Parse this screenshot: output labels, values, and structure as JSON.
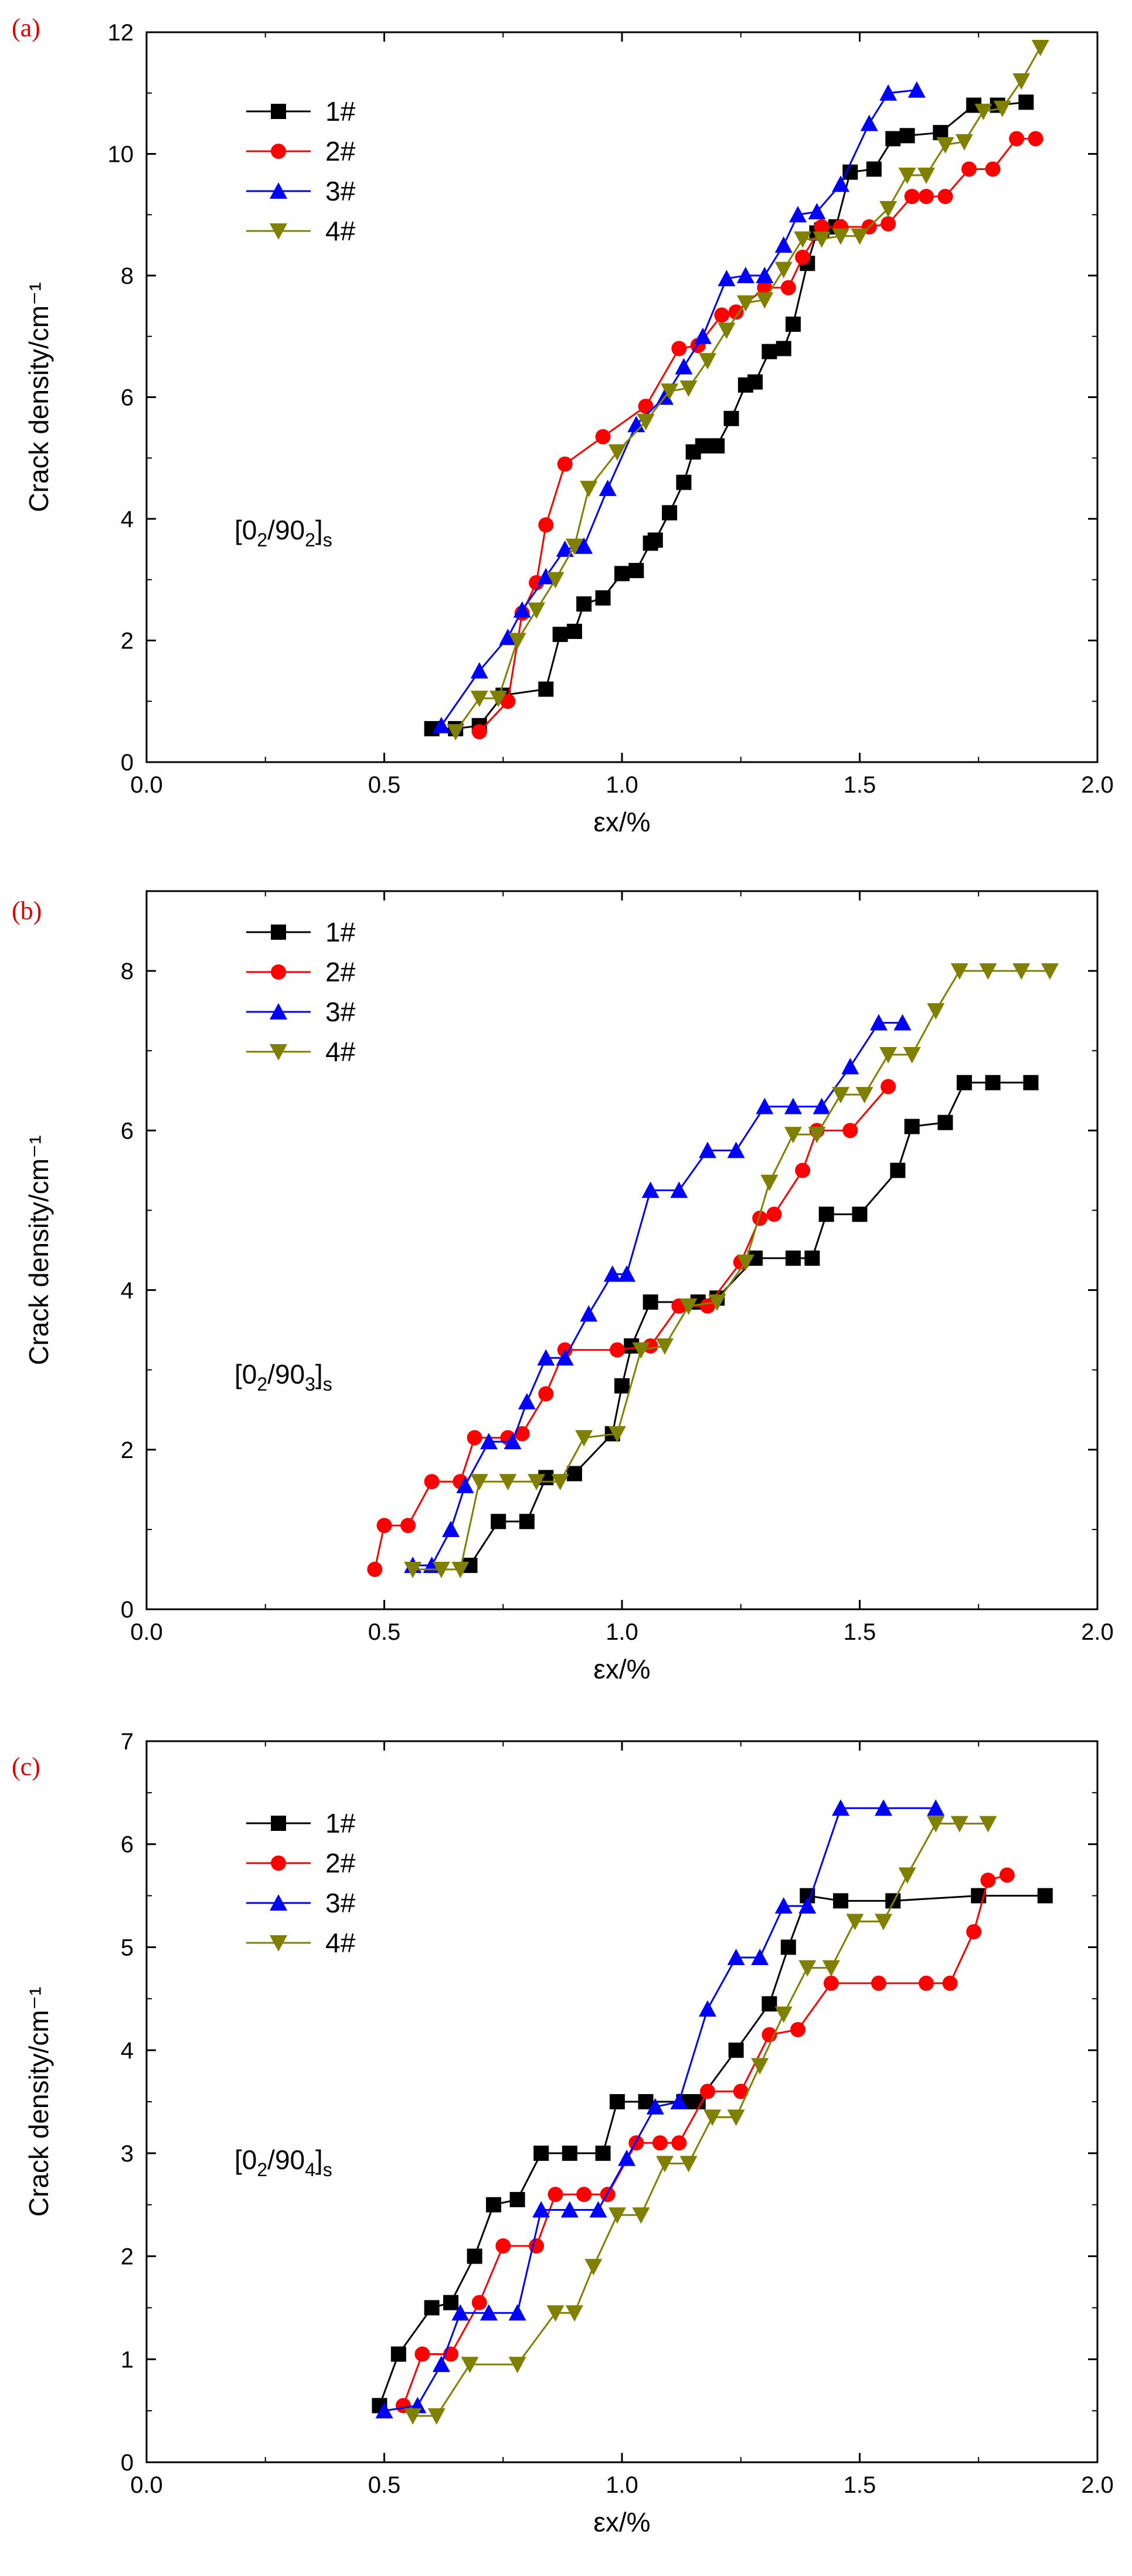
{
  "chart_data": [
    {
      "panel": "(a)",
      "type": "line",
      "xlabel": "εx/%",
      "ylabel": "Crack density/cm⁻¹",
      "xlim": [
        0,
        2
      ],
      "ylim": [
        0,
        12
      ],
      "xticks": [
        0.0,
        0.5,
        1.0,
        1.5,
        2.0
      ],
      "yticks": [
        0,
        2,
        4,
        6,
        8,
        10,
        12
      ],
      "annotation": {
        "text": "[0/90]",
        "sub1": "2",
        "sub2": "2",
        "sub3": "s"
      },
      "legend": "top-left",
      "series": [
        {
          "name": "1#",
          "color": "#000000",
          "marker": "square",
          "x": [
            0.6,
            0.65,
            0.7,
            0.75,
            0.84,
            0.87,
            0.9,
            0.92,
            0.96,
            1.0,
            1.03,
            1.06,
            1.07,
            1.1,
            1.13,
            1.15,
            1.17,
            1.2,
            1.23,
            1.26,
            1.28,
            1.31,
            1.34,
            1.36,
            1.39,
            1.41,
            1.42,
            1.45,
            1.48,
            1.53,
            1.57,
            1.6,
            1.67,
            1.74,
            1.79,
            1.85
          ],
          "y": [
            0.55,
            0.55,
            0.6,
            1.1,
            1.2,
            2.1,
            2.15,
            2.6,
            2.7,
            3.1,
            3.15,
            3.6,
            3.65,
            4.1,
            4.6,
            5.1,
            5.2,
            5.2,
            5.65,
            6.2,
            6.25,
            6.75,
            6.8,
            7.2,
            8.2,
            8.7,
            8.75,
            8.8,
            9.7,
            9.75,
            10.25,
            10.3,
            10.35,
            10.8,
            10.8,
            10.85
          ]
        },
        {
          "name": "2#",
          "color": "#ff0000",
          "marker": "circle",
          "x": [
            0.7,
            0.76,
            0.79,
            0.82,
            0.84,
            0.88,
            0.96,
            1.05,
            1.12,
            1.16,
            1.21,
            1.24,
            1.3,
            1.35,
            1.38,
            1.42,
            1.46,
            1.52,
            1.56,
            1.61,
            1.64,
            1.68,
            1.73,
            1.78,
            1.83,
            1.87
          ],
          "y": [
            0.5,
            1.0,
            2.45,
            2.95,
            3.9,
            4.9,
            5.35,
            5.85,
            6.8,
            6.85,
            7.35,
            7.4,
            7.8,
            7.8,
            8.3,
            8.8,
            8.8,
            8.8,
            8.85,
            9.3,
            9.3,
            9.3,
            9.75,
            9.75,
            10.25,
            10.25
          ]
        },
        {
          "name": "3#",
          "color": "#0000ff",
          "marker": "triangle-up",
          "x": [
            0.62,
            0.7,
            0.76,
            0.79,
            0.84,
            0.88,
            0.92,
            0.97,
            1.03,
            1.09,
            1.13,
            1.17,
            1.22,
            1.26,
            1.3,
            1.34,
            1.37,
            1.41,
            1.46,
            1.52,
            1.56,
            1.62
          ],
          "y": [
            0.6,
            1.5,
            2.05,
            2.5,
            3.05,
            3.5,
            3.55,
            4.5,
            5.55,
            6.0,
            6.5,
            7.0,
            7.95,
            8.0,
            8.0,
            8.5,
            9.0,
            9.05,
            9.5,
            10.5,
            11.0,
            11.05
          ]
        },
        {
          "name": "4#",
          "color": "#808000",
          "marker": "triangle-down",
          "x": [
            0.65,
            0.7,
            0.74,
            0.78,
            0.82,
            0.86,
            0.9,
            0.93,
            0.99,
            1.05,
            1.1,
            1.14,
            1.18,
            1.22,
            1.26,
            1.3,
            1.34,
            1.38,
            1.42,
            1.46,
            1.5,
            1.56,
            1.6,
            1.64,
            1.68,
            1.72,
            1.76,
            1.8,
            1.84,
            1.88
          ],
          "y": [
            0.5,
            1.05,
            1.05,
            2.0,
            2.5,
            3.0,
            3.55,
            4.5,
            5.1,
            5.6,
            6.1,
            6.15,
            6.6,
            7.1,
            7.55,
            7.6,
            8.1,
            8.6,
            8.6,
            8.65,
            8.65,
            9.1,
            9.65,
            9.65,
            10.15,
            10.2,
            10.7,
            10.75,
            11.2,
            11.75
          ]
        }
      ]
    },
    {
      "panel": "(b)",
      "type": "line",
      "xlabel": "εx/%",
      "ylabel": "Crack density/cm⁻¹",
      "xlim": [
        0,
        2
      ],
      "ylim": [
        0,
        9
      ],
      "xticks": [
        0.0,
        0.5,
        1.0,
        1.5,
        2.0
      ],
      "yticks": [
        0,
        2,
        4,
        6,
        8
      ],
      "annotation": {
        "text": "[0/90]",
        "sub1": "2",
        "sub2": "3",
        "sub3": "s"
      },
      "legend": "top-left",
      "series": [
        {
          "name": "1#",
          "color": "#000000",
          "marker": "square",
          "x": [
            0.68,
            0.74,
            0.8,
            0.84,
            0.9,
            0.98,
            1.0,
            1.02,
            1.06,
            1.16,
            1.2,
            1.28,
            1.36,
            1.4,
            1.43,
            1.5,
            1.58,
            1.61,
            1.68,
            1.72,
            1.78,
            1.86
          ],
          "y": [
            0.55,
            1.1,
            1.1,
            1.65,
            1.7,
            2.2,
            2.8,
            3.3,
            3.85,
            3.85,
            3.9,
            4.4,
            4.4,
            4.4,
            4.95,
            4.95,
            5.5,
            6.05,
            6.1,
            6.6,
            6.6,
            6.6
          ]
        },
        {
          "name": "2#",
          "color": "#ff0000",
          "marker": "circle",
          "x": [
            0.48,
            0.5,
            0.55,
            0.6,
            0.66,
            0.69,
            0.76,
            0.79,
            0.84,
            0.88,
            0.99,
            1.06,
            1.12,
            1.18,
            1.25,
            1.29,
            1.32,
            1.38,
            1.41,
            1.48,
            1.56
          ],
          "y": [
            0.5,
            1.05,
            1.05,
            1.6,
            1.6,
            2.15,
            2.15,
            2.2,
            2.7,
            3.25,
            3.25,
            3.3,
            3.8,
            3.8,
            4.35,
            4.9,
            4.95,
            5.5,
            6.0,
            6.0,
            6.55
          ]
        },
        {
          "name": "3#",
          "color": "#0000ff",
          "marker": "triangle-up",
          "x": [
            0.56,
            0.6,
            0.64,
            0.67,
            0.72,
            0.77,
            0.8,
            0.84,
            0.88,
            0.93,
            0.98,
            1.01,
            1.06,
            1.12,
            1.18,
            1.24,
            1.3,
            1.36,
            1.42,
            1.48,
            1.54,
            1.59
          ],
          "y": [
            0.55,
            0.55,
            1.0,
            1.55,
            2.1,
            2.1,
            2.6,
            3.15,
            3.15,
            3.7,
            4.2,
            4.2,
            5.25,
            5.25,
            5.75,
            5.75,
            6.3,
            6.3,
            6.3,
            6.8,
            7.35,
            7.35
          ]
        },
        {
          "name": "4#",
          "color": "#808000",
          "marker": "triangle-down",
          "x": [
            0.56,
            0.62,
            0.66,
            0.7,
            0.76,
            0.82,
            0.87,
            0.92,
            0.99,
            1.04,
            1.09,
            1.14,
            1.2,
            1.26,
            1.31,
            1.36,
            1.41,
            1.46,
            1.51,
            1.56,
            1.61,
            1.66,
            1.71,
            1.77,
            1.84,
            1.9
          ],
          "y": [
            0.5,
            0.5,
            0.5,
            1.6,
            1.6,
            1.6,
            1.6,
            2.15,
            2.2,
            3.25,
            3.3,
            3.8,
            3.85,
            4.35,
            5.35,
            5.95,
            5.95,
            6.45,
            6.45,
            6.95,
            6.95,
            7.5,
            8.0,
            8.0,
            8.0,
            8.0
          ]
        }
      ]
    },
    {
      "panel": "(c)",
      "type": "line",
      "xlabel": "εx/%",
      "ylabel": "Crack density/cm⁻¹",
      "xlim": [
        0,
        2
      ],
      "ylim": [
        0,
        7
      ],
      "xticks": [
        0.0,
        0.5,
        1.0,
        1.5,
        2.0
      ],
      "yticks": [
        0,
        1,
        2,
        3,
        4,
        5,
        6,
        7
      ],
      "annotation": {
        "text": "[0/90]",
        "sub1": "2",
        "sub2": "4",
        "sub3": "s"
      },
      "legend": "top-left",
      "series": [
        {
          "name": "1#",
          "color": "#000000",
          "marker": "square",
          "x": [
            0.49,
            0.53,
            0.6,
            0.64,
            0.69,
            0.73,
            0.78,
            0.83,
            0.89,
            0.96,
            0.99,
            1.05,
            1.13,
            1.16,
            1.24,
            1.31,
            1.35,
            1.39,
            1.46,
            1.57,
            1.75,
            1.89
          ],
          "y": [
            0.55,
            1.05,
            1.5,
            1.55,
            2.0,
            2.5,
            2.55,
            3.0,
            3.0,
            3.0,
            3.5,
            3.5,
            3.5,
            3.5,
            4.0,
            4.45,
            5.0,
            5.5,
            5.45,
            5.45,
            5.5,
            5.5
          ]
        },
        {
          "name": "2#",
          "color": "#ff0000",
          "marker": "circle",
          "x": [
            0.54,
            0.58,
            0.64,
            0.7,
            0.75,
            0.82,
            0.86,
            0.92,
            0.97,
            1.03,
            1.08,
            1.12,
            1.18,
            1.25,
            1.31,
            1.37,
            1.44,
            1.54,
            1.64,
            1.69,
            1.74,
            1.77,
            1.81
          ],
          "y": [
            0.55,
            1.05,
            1.05,
            1.55,
            2.1,
            2.1,
            2.6,
            2.6,
            2.6,
            3.1,
            3.1,
            3.1,
            3.6,
            3.6,
            4.15,
            4.2,
            4.65,
            4.65,
            4.65,
            4.65,
            5.15,
            5.65,
            5.7
          ]
        },
        {
          "name": "3#",
          "color": "#0000ff",
          "marker": "triangle-up",
          "x": [
            0.5,
            0.57,
            0.62,
            0.66,
            0.72,
            0.78,
            0.83,
            0.89,
            0.95,
            1.01,
            1.07,
            1.12,
            1.18,
            1.24,
            1.29,
            1.34,
            1.39,
            1.46,
            1.55,
            1.66
          ],
          "y": [
            0.5,
            0.55,
            0.95,
            1.45,
            1.45,
            1.45,
            2.45,
            2.45,
            2.45,
            2.95,
            3.45,
            3.5,
            4.4,
            4.9,
            4.9,
            5.4,
            5.4,
            6.35,
            6.35,
            6.35
          ]
        },
        {
          "name": "4#",
          "color": "#808000",
          "marker": "triangle-down",
          "x": [
            0.56,
            0.61,
            0.68,
            0.78,
            0.86,
            0.9,
            0.94,
            0.99,
            1.04,
            1.09,
            1.14,
            1.19,
            1.24,
            1.29,
            1.34,
            1.39,
            1.44,
            1.49,
            1.55,
            1.6,
            1.66,
            1.71,
            1.77
          ],
          "y": [
            0.45,
            0.45,
            0.95,
            0.95,
            1.45,
            1.45,
            1.9,
            2.4,
            2.4,
            2.9,
            2.9,
            3.35,
            3.35,
            3.85,
            4.35,
            4.8,
            4.8,
            5.25,
            5.25,
            5.7,
            6.2,
            6.2,
            6.2
          ]
        }
      ]
    }
  ]
}
